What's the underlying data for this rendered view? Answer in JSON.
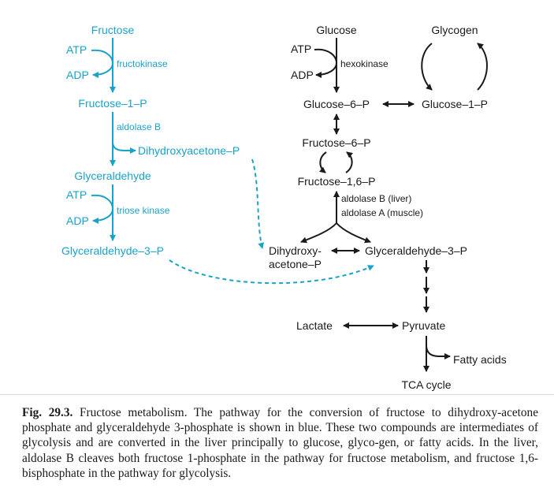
{
  "labels": {
    "fructose": "Fructose",
    "atp_left1": "ATP",
    "adp_left1": "ADP",
    "fructokinase": "fructokinase",
    "fructose_1_p": "Fructose–1–P",
    "aldolase_b": "aldolase B",
    "dhap_blue": "Dihydroxyacetone–P",
    "glyceraldehyde": "Glyceraldehyde",
    "atp_left2": "ATP",
    "adp_left2": "ADP",
    "triose_kinase": "triose kinase",
    "ga3p_blue": "Glyceraldehyde–3–P",
    "glucose": "Glucose",
    "atp_right": "ATP",
    "adp_right": "ADP",
    "hexokinase": "hexokinase",
    "glycogen": "Glycogen",
    "glucose_6_p": "Glucose–6–P",
    "glucose_1_p": "Glucose–1–P",
    "fructose_6_p": "Fructose–6–P",
    "fructose_16_p": "Fructose–1,6–P",
    "aldolase_b_liver": "aldolase B (liver)",
    "aldolase_a_muscle": "aldolase A (muscle)",
    "dhap_line1": "Dihydroxy-",
    "dhap_line2": "acetone–P",
    "ga3p_black": "Glyceraldehyde–3–P",
    "lactate": "Lactate",
    "pyruvate": "Pyruvate",
    "fatty_acids": "Fatty acids",
    "tca_cycle": "TCA cycle"
  },
  "caption": {
    "figure_number": "Fig. 29.3.",
    "text": "Fructose metabolism. The pathway for the conversion of fructose to dihydroxy-acetone phosphate and glyceraldehyde 3-phosphate is shown in blue. These two compounds are intermediates of glycolysis and are converted in the liver principally to glucose, glyco-gen, or fatty acids. In the liver, aldolase B cleaves both fructose 1-phosphate in the pathway for fructose metabolism, and fructose 1,6-bisphosphate in the pathway for glycolysis."
  },
  "colors": {
    "fructose_pathway": "#1aa3c6",
    "glycolysis_pathway": "#1a1a1a"
  }
}
